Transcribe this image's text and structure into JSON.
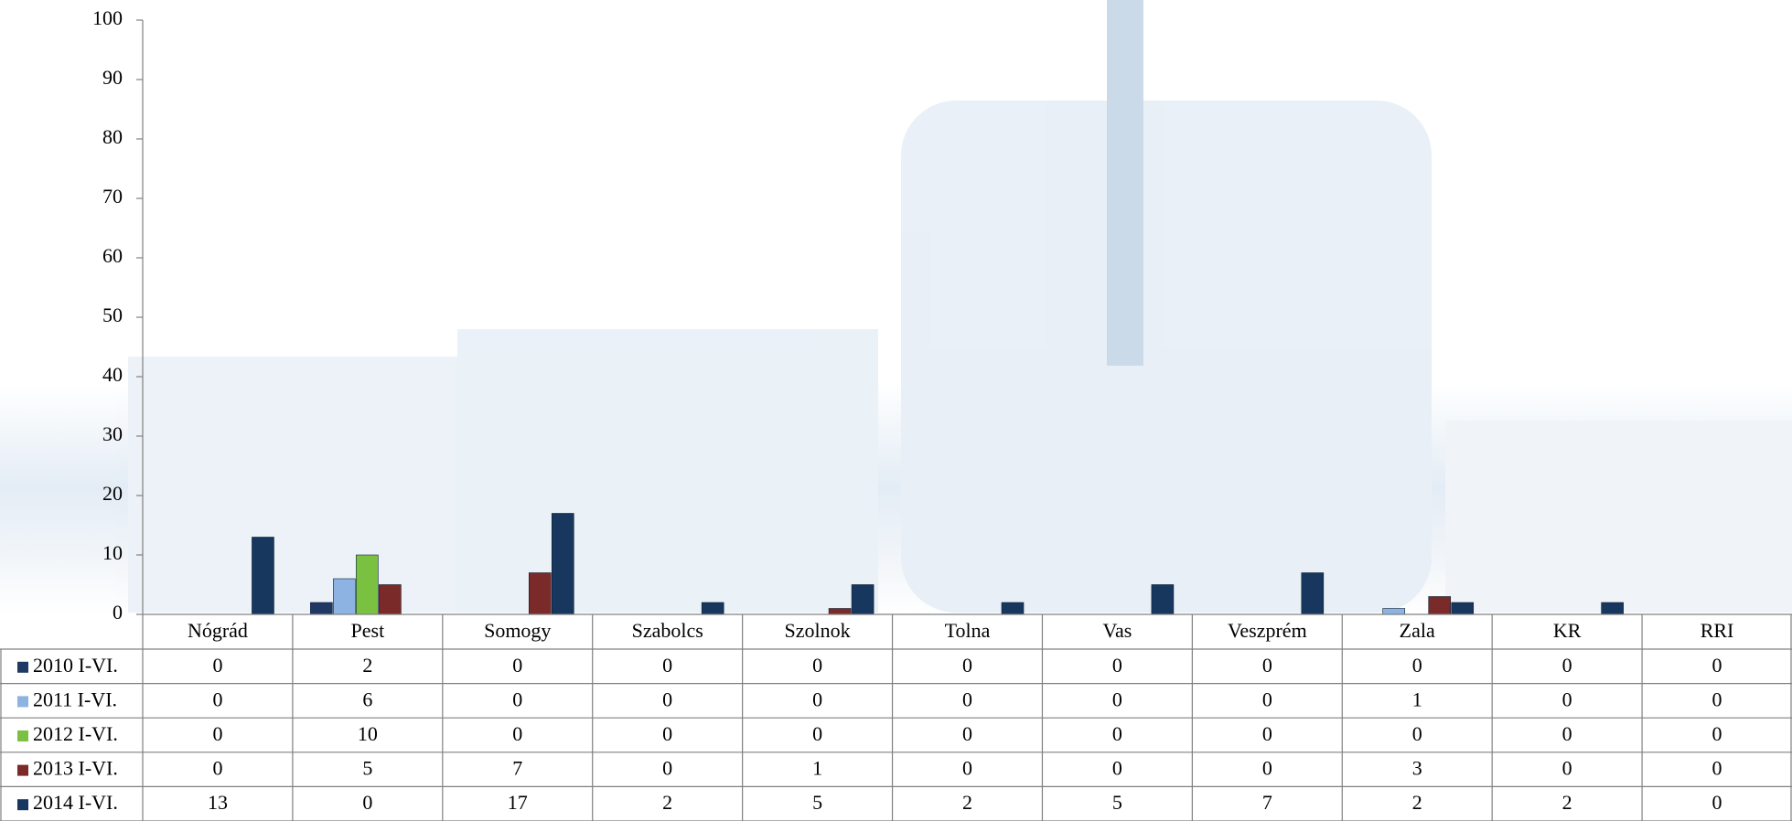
{
  "chart_data": {
    "type": "bar",
    "categories": [
      "Nógrád",
      "Pest",
      "Somogy",
      "Szabolcs",
      "Szolnok",
      "Tolna",
      "Vas",
      "Veszprém",
      "Zala",
      "KR",
      "RRI"
    ],
    "series": [
      {
        "name": "2010 I-VI.",
        "color": "#1f3864",
        "values": [
          0,
          2,
          0,
          0,
          0,
          0,
          0,
          0,
          0,
          0,
          0
        ]
      },
      {
        "name": "2011 I-VI.",
        "color": "#8db3e2",
        "values": [
          0,
          6,
          0,
          0,
          0,
          0,
          0,
          0,
          1,
          0,
          0
        ]
      },
      {
        "name": "2012 I-VI.",
        "color": "#7ac142",
        "values": [
          0,
          10,
          0,
          0,
          0,
          0,
          0,
          0,
          0,
          0,
          0
        ]
      },
      {
        "name": "2013 I-VI.",
        "color": "#7b2a2a",
        "values": [
          0,
          5,
          7,
          0,
          1,
          0,
          0,
          0,
          3,
          0,
          0
        ]
      },
      {
        "name": "2014 I-VI.",
        "color": "#17375e",
        "values": [
          13,
          0,
          17,
          2,
          5,
          2,
          5,
          7,
          2,
          2,
          0
        ]
      }
    ],
    "ylim": [
      0,
      100
    ],
    "yticks": [
      0,
      10,
      20,
      30,
      40,
      50,
      60,
      70,
      80,
      90,
      100
    ],
    "grid": false
  }
}
